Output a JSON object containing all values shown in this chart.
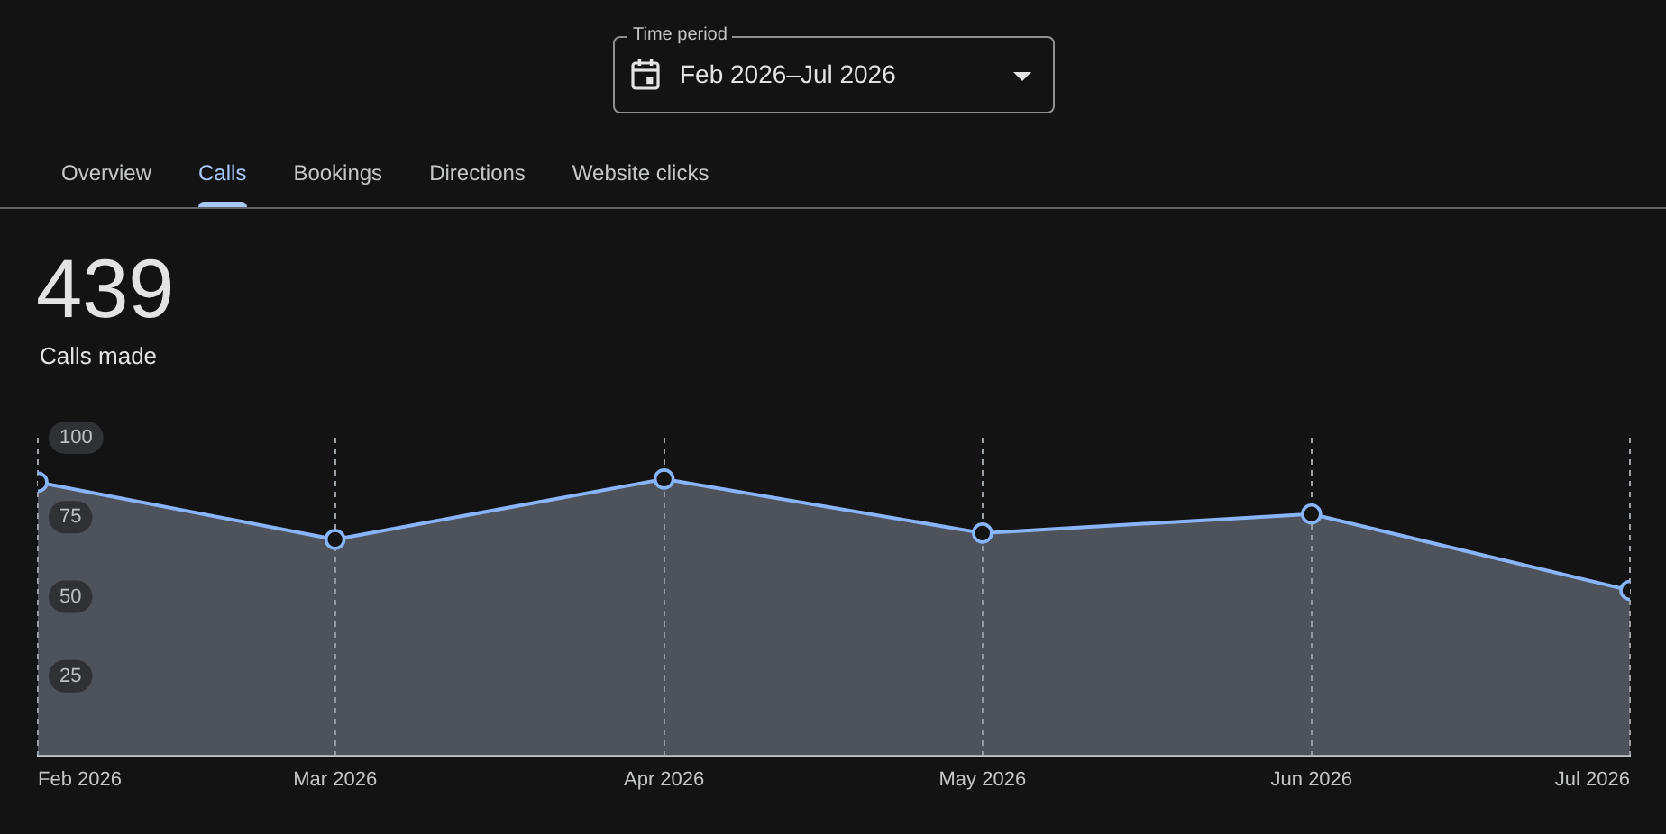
{
  "chart_data": {
    "type": "area",
    "title": "439",
    "subtitle": "Calls made",
    "annotations": [
      "Time period",
      "Feb 2026–Jul 2026",
      "Overview",
      "Calls",
      "Bookings",
      "Directions",
      "Website clicks"
    ],
    "x": [
      "2026-02",
      "2026-03",
      "2026-04",
      "2026-05",
      "2026-06",
      "2026-07"
    ],
    "values": [
      86,
      68,
      87,
      70,
      76,
      52
    ],
    "color": "#8ab4f8",
    "xlim": [
      "2026-02",
      "2026-07"
    ],
    "xticks": [
      {
        "value": "2026-02",
        "label": "Feb 2026"
      },
      {
        "value": "2026-03",
        "label": "Mar 2026"
      },
      {
        "value": "2026-04",
        "label": "Apr 2026"
      },
      {
        "value": "2026-05",
        "label": "May 2026"
      },
      {
        "value": "2026-06",
        "label": "Jun 2026"
      },
      {
        "value": "2026-07",
        "label": "Jul 2026"
      }
    ],
    "ylim": [
      0,
      100
    ],
    "yticks": [
      25,
      50,
      75,
      100
    ],
    "grid": "x",
    "marker": "circle"
  }
}
